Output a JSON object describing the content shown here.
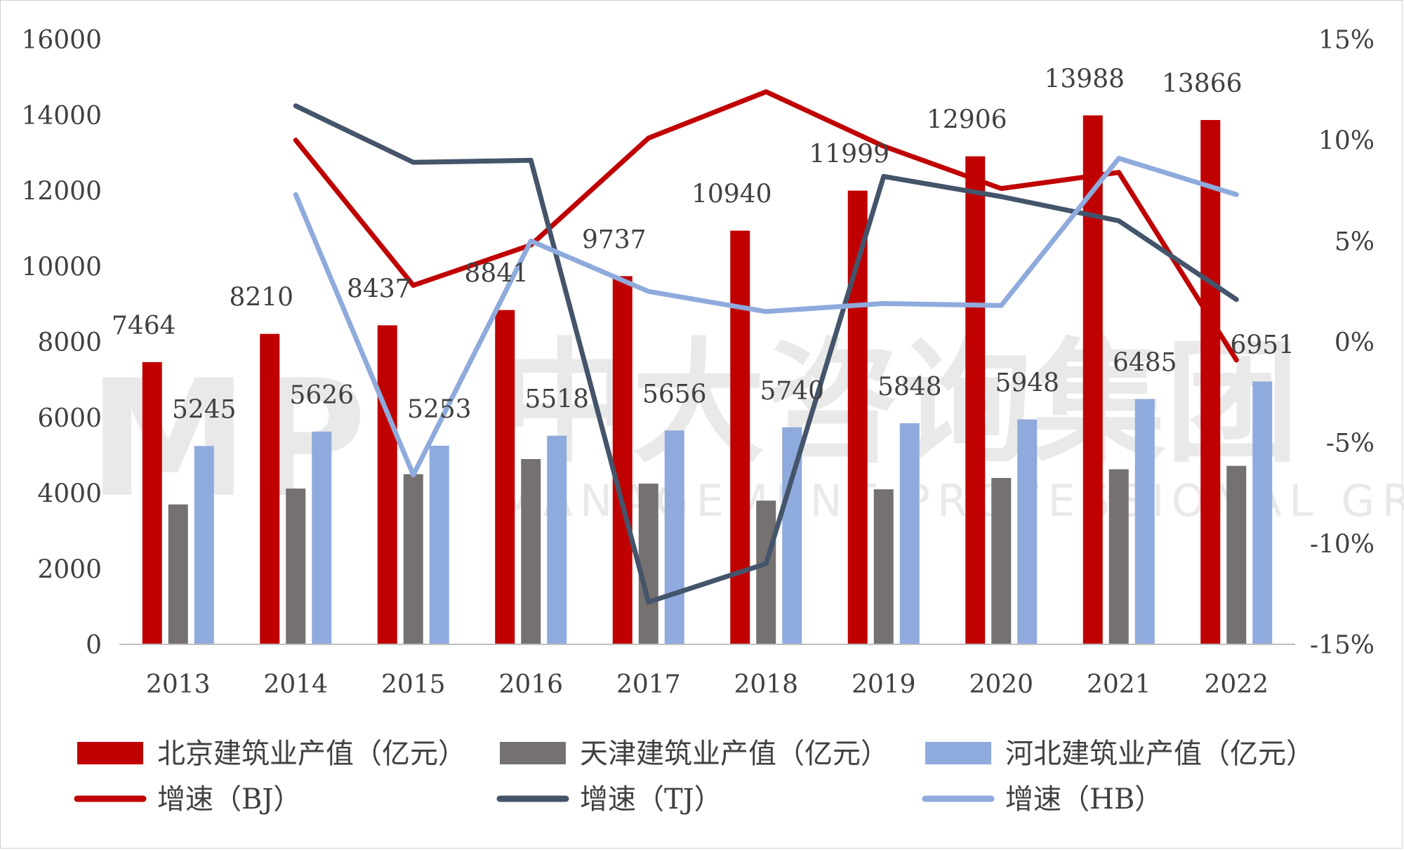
{
  "watermark": {
    "logo": "MP",
    "cn": "中大咨询集团",
    "en": "MANAGEMENT PROFESSIONAL GROUP"
  },
  "chart_data": {
    "type": "bar",
    "categories": [
      "2013",
      "2014",
      "2015",
      "2016",
      "2017",
      "2018",
      "2019",
      "2020",
      "2021",
      "2022"
    ],
    "y_left": {
      "ylim": [
        0,
        16000
      ],
      "ticks": [
        0,
        2000,
        4000,
        6000,
        8000,
        10000,
        12000,
        14000,
        16000
      ],
      "tick_labels": [
        "0",
        "2000",
        "4000",
        "6000",
        "8000",
        "10000",
        "12000",
        "14000",
        "16000"
      ]
    },
    "y_right": {
      "ylim": [
        -15,
        15
      ],
      "ticks": [
        -15,
        -10,
        -5,
        0,
        5,
        10,
        15
      ],
      "tick_labels": [
        "-15%",
        "-10%",
        "-5%",
        "0%",
        "5%",
        "10%",
        "15%"
      ]
    },
    "bar_series": [
      {
        "name": "北京建筑业产值（亿元）",
        "color": "#c00000",
        "values": [
          7464,
          8210,
          8437,
          8841,
          9737,
          10940,
          11999,
          12906,
          13988,
          13866
        ],
        "labels": [
          "7464",
          "8210",
          "8437",
          "8841",
          "9737",
          "10940",
          "11999",
          "12906",
          "13988",
          "13866"
        ]
      },
      {
        "name": "天津建筑业产值（亿元）",
        "color": "#767171",
        "values": [
          3700,
          4120,
          4500,
          4900,
          4250,
          3800,
          4100,
          4400,
          4630,
          4720
        ],
        "labels": [
          "",
          "",
          "",
          "",
          "",
          "",
          "",
          "",
          "",
          ""
        ]
      },
      {
        "name": "河北建筑业产值（亿元）",
        "color": "#8faadc",
        "values": [
          5245,
          5626,
          5253,
          5518,
          5656,
          5740,
          5848,
          5948,
          6485,
          6951
        ],
        "labels": [
          "5245",
          "5626",
          "5253",
          "5518",
          "5656",
          "5740",
          "5848",
          "5948",
          "6485",
          "6951"
        ]
      }
    ],
    "line_series": [
      {
        "name": "增速（BJ）",
        "color": "#c00000",
        "values": [
          null,
          10.0,
          2.8,
          4.8,
          10.1,
          12.4,
          9.7,
          7.6,
          8.4,
          -0.9
        ]
      },
      {
        "name": "增速（TJ）",
        "color": "#44546a",
        "values": [
          null,
          11.7,
          8.9,
          9.0,
          -12.9,
          -11.0,
          8.2,
          7.2,
          6.0,
          2.1
        ]
      },
      {
        "name": "增速（HB）",
        "color": "#8faadc",
        "values": [
          null,
          7.3,
          -6.6,
          5.0,
          2.5,
          1.5,
          1.9,
          1.8,
          9.1,
          7.3
        ]
      }
    ],
    "grid": false,
    "legend": "bottom"
  }
}
